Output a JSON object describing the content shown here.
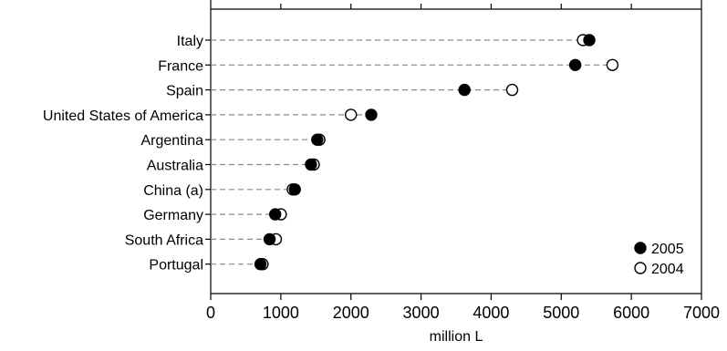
{
  "chart_data": {
    "type": "scatter",
    "subtype": "dot-plot",
    "categories": [
      "Italy",
      "France",
      "Spain",
      "United States of America",
      "Argentina",
      "Australia",
      "China (a)",
      "Germany",
      "South Africa",
      "Portugal"
    ],
    "series": [
      {
        "name": "2005",
        "marker": "filled-circle",
        "values": [
          5400,
          5200,
          3620,
          2290,
          1520,
          1430,
          1200,
          920,
          840,
          710
        ]
      },
      {
        "name": "2004",
        "marker": "open-circle",
        "values": [
          5310,
          5730,
          4300,
          2000,
          1550,
          1470,
          1170,
          1000,
          930,
          740
        ]
      }
    ],
    "xlabel": "million L",
    "ylabel": "",
    "xlim": [
      0,
      7000
    ],
    "xticks": [
      0,
      1000,
      2000,
      3000,
      4000,
      5000,
      6000,
      7000
    ],
    "grid": false,
    "guide_lines": "dashed",
    "legend_position": "bottom-right",
    "colors": {
      "marker": "#000000",
      "guide_line": "#888888",
      "axis": "#000000"
    }
  }
}
